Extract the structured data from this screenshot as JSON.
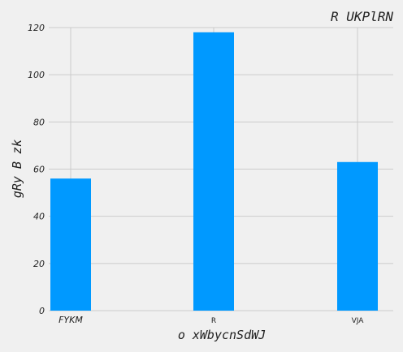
{
  "chart_data": {
    "type": "bar",
    "title": "R UKPlRN",
    "xlabel": "o xWbycnSdWJ",
    "ylabel": "gRy B zk",
    "categories": [
      "FYKM",
      "R",
      "VJA"
    ],
    "values": [
      56,
      118,
      63
    ],
    "ylim": [
      0,
      120
    ],
    "yticks": [
      "0",
      "20",
      "40",
      "60",
      "80",
      "100",
      "120"
    ],
    "grid": true,
    "legend": "none",
    "colors": {
      "bar": "#0099ff",
      "grid": "#cbcbcb",
      "background": "#f0f0f0"
    }
  }
}
